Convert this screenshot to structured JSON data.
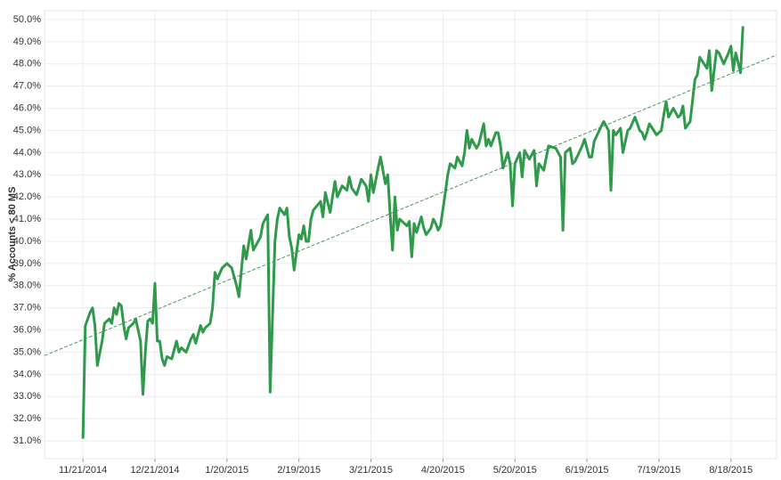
{
  "chart_data": {
    "type": "line",
    "y_label": "% Accounts < 80 MS",
    "xlim": [
      "2014-11-05",
      "2015-09-06"
    ],
    "xticks": [
      {
        "value": "2014-11-21",
        "label": "11/21/2014"
      },
      {
        "value": "2014-12-21",
        "label": "12/21/2014"
      },
      {
        "value": "2015-01-20",
        "label": "1/20/2015"
      },
      {
        "value": "2015-02-19",
        "label": "2/19/2015"
      },
      {
        "value": "2015-03-21",
        "label": "3/21/2015"
      },
      {
        "value": "2015-04-20",
        "label": "4/20/2015"
      },
      {
        "value": "2015-05-20",
        "label": "5/20/2015"
      },
      {
        "value": "2015-06-19",
        "label": "6/19/2015"
      },
      {
        "value": "2015-07-19",
        "label": "7/19/2015"
      },
      {
        "value": "2015-08-18",
        "label": "8/18/2015"
      }
    ],
    "ylim": [
      30.2,
      50.4
    ],
    "yticks": [
      {
        "value": 31,
        "label": "31.0%"
      },
      {
        "value": 32,
        "label": "32.0%"
      },
      {
        "value": 33,
        "label": "33.0%"
      },
      {
        "value": 34,
        "label": "34.0%"
      },
      {
        "value": 35,
        "label": "35.0%"
      },
      {
        "value": 36,
        "label": "36.0%"
      },
      {
        "value": 37,
        "label": "37.0%"
      },
      {
        "value": 38,
        "label": "38.0%"
      },
      {
        "value": 39,
        "label": "39.0%"
      },
      {
        "value": 40,
        "label": "40.0%"
      },
      {
        "value": 41,
        "label": "41.0%"
      },
      {
        "value": 42,
        "label": "42.0%"
      },
      {
        "value": 43,
        "label": "43.0%"
      },
      {
        "value": 44,
        "label": "44.0%"
      },
      {
        "value": 45,
        "label": "45.0%"
      },
      {
        "value": 46,
        "label": "46.0%"
      },
      {
        "value": 47,
        "label": "47.0%"
      },
      {
        "value": 48,
        "label": "48.0%"
      },
      {
        "value": 49,
        "label": "49.0%"
      },
      {
        "value": 50,
        "label": "50.0%"
      }
    ],
    "grid": true,
    "x": [
      "2014-11-21",
      "2014-11-22",
      "2014-11-24",
      "2014-11-25",
      "2014-11-26",
      "2014-11-27",
      "2014-11-29",
      "2014-11-30",
      "2014-12-02",
      "2014-12-03",
      "2014-12-04",
      "2014-12-05",
      "2014-12-06",
      "2014-12-07",
      "2014-12-08",
      "2014-12-09",
      "2014-12-10",
      "2014-12-12",
      "2014-12-13",
      "2014-12-14",
      "2014-12-15",
      "2014-12-16",
      "2014-12-17",
      "2014-12-18",
      "2014-12-19",
      "2014-12-20",
      "2014-12-21",
      "2014-12-22",
      "2014-12-23",
      "2014-12-24",
      "2014-12-25",
      "2014-12-26",
      "2014-12-28",
      "2014-12-30",
      "2014-12-31",
      "2015-01-01",
      "2015-01-03",
      "2015-01-05",
      "2015-01-06",
      "2015-01-07",
      "2015-01-09",
      "2015-01-10",
      "2015-01-11",
      "2015-01-13",
      "2015-01-14",
      "2015-01-15",
      "2015-01-16",
      "2015-01-18",
      "2015-01-20",
      "2015-01-22",
      "2015-01-24",
      "2015-01-25",
      "2015-01-27",
      "2015-01-28",
      "2015-01-30",
      "2015-01-31",
      "2015-02-03",
      "2015-02-04",
      "2015-02-06",
      "2015-02-07",
      "2015-02-09",
      "2015-02-10",
      "2015-02-11",
      "2015-02-13",
      "2015-02-14",
      "2015-02-15",
      "2015-02-16",
      "2015-02-17",
      "2015-02-18",
      "2015-02-19",
      "2015-02-20",
      "2015-02-21",
      "2015-02-22",
      "2015-02-23",
      "2015-02-24",
      "2015-02-25",
      "2015-02-28",
      "2015-03-01",
      "2015-03-02",
      "2015-03-04",
      "2015-03-06",
      "2015-03-07",
      "2015-03-09",
      "2015-03-11",
      "2015-03-12",
      "2015-03-13",
      "2015-03-15",
      "2015-03-17",
      "2015-03-19",
      "2015-03-20",
      "2015-03-21",
      "2015-03-22",
      "2015-03-24",
      "2015-03-25",
      "2015-03-27",
      "2015-03-28",
      "2015-03-29",
      "2015-03-30",
      "2015-03-31",
      "2015-04-01",
      "2015-04-02",
      "2015-04-05",
      "2015-04-06",
      "2015-04-07",
      "2015-04-08",
      "2015-04-09",
      "2015-04-11",
      "2015-04-12",
      "2015-04-13",
      "2015-04-15",
      "2015-04-16",
      "2015-04-17",
      "2015-04-18",
      "2015-04-19",
      "2015-04-21",
      "2015-04-22",
      "2015-04-23",
      "2015-04-25",
      "2015-04-26",
      "2015-04-28",
      "2015-04-29",
      "2015-04-30",
      "2015-05-01",
      "2015-05-02",
      "2015-05-04",
      "2015-05-05",
      "2015-05-07",
      "2015-05-08",
      "2015-05-09",
      "2015-05-10",
      "2015-05-12",
      "2015-05-13",
      "2015-05-14",
      "2015-05-15",
      "2015-05-17",
      "2015-05-18",
      "2015-05-19",
      "2015-05-20",
      "2015-05-22",
      "2015-05-23",
      "2015-05-24",
      "2015-05-26",
      "2015-05-28",
      "2015-05-29",
      "2015-05-30",
      "2015-06-01",
      "2015-06-03",
      "2015-06-06",
      "2015-06-07",
      "2015-06-08",
      "2015-06-09",
      "2015-06-10",
      "2015-06-12",
      "2015-06-13",
      "2015-06-14",
      "2015-06-17",
      "2015-06-18",
      "2015-06-20",
      "2015-06-21",
      "2015-06-22",
      "2015-06-25",
      "2015-06-26",
      "2015-06-28",
      "2015-06-29",
      "2015-06-30",
      "2015-07-01",
      "2015-07-03",
      "2015-07-04",
      "2015-07-06",
      "2015-07-07",
      "2015-07-09",
      "2015-07-11",
      "2015-07-12",
      "2015-07-13",
      "2015-07-14",
      "2015-07-15",
      "2015-07-18",
      "2015-07-20",
      "2015-07-21",
      "2015-07-22",
      "2015-07-23",
      "2015-07-25",
      "2015-07-27",
      "2015-07-28",
      "2015-07-29",
      "2015-07-30",
      "2015-08-01",
      "2015-08-03",
      "2015-08-04",
      "2015-08-05",
      "2015-08-08",
      "2015-08-09",
      "2015-08-10",
      "2015-08-12",
      "2015-08-13",
      "2015-08-15",
      "2015-08-17",
      "2015-08-18",
      "2015-08-19",
      "2015-08-20",
      "2015-08-22",
      "2015-08-23"
    ],
    "series": [
      {
        "color": "#2e9a4a",
        "values": [
          31.1,
          36.2,
          36.8,
          37.0,
          36.2,
          34.4,
          35.5,
          36.3,
          36.5,
          36.3,
          37.0,
          36.7,
          37.2,
          37.1,
          36.2,
          35.6,
          36.1,
          36.3,
          36.5,
          36.0,
          35.5,
          33.1,
          35.0,
          36.4,
          36.5,
          36.3,
          38.1,
          35.5,
          35.5,
          34.7,
          34.4,
          34.8,
          34.7,
          35.5,
          35.0,
          35.2,
          35.0,
          35.6,
          35.8,
          35.4,
          36.2,
          35.9,
          36.1,
          36.3,
          37.0,
          38.6,
          38.3,
          38.8,
          39.0,
          38.8,
          38.0,
          37.5,
          39.8,
          39.2,
          40.5,
          39.6,
          40.2,
          40.8,
          41.2,
          33.2,
          40.0,
          41.0,
          41.5,
          41.2,
          41.5,
          40.2,
          39.7,
          38.7,
          39.5,
          40.3,
          40.1,
          40.7,
          40.0,
          40.0,
          41.0,
          41.4,
          41.8,
          41.1,
          42.2,
          41.3,
          42.7,
          42.0,
          42.5,
          42.3,
          42.9,
          42.4,
          42.1,
          42.8,
          42.5,
          41.8,
          43.0,
          42.2,
          43.3,
          43.8,
          42.6,
          43.0,
          41.2,
          39.6,
          42.0,
          40.5,
          41.0,
          40.7,
          40.9,
          39.3,
          40.8,
          40.4,
          41.1,
          40.6,
          40.3,
          40.6,
          41.0,
          40.8,
          40.5,
          40.7,
          42.2,
          43.0,
          43.5,
          43.3,
          43.8,
          43.4,
          44.0,
          45.0,
          44.2,
          44.6,
          44.2,
          44.4,
          45.3,
          44.3,
          44.6,
          44.3,
          44.9,
          44.9,
          44.3,
          43.3,
          44.0,
          43.5,
          41.6,
          43.5,
          44.0,
          42.9,
          44.1,
          43.7,
          44.1,
          42.5,
          43.5,
          43.2,
          44.3,
          44.2,
          44.0,
          43.8,
          40.5,
          44.0,
          44.2,
          43.5,
          43.6,
          44.3,
          44.6,
          43.8,
          43.8,
          44.5,
          45.2,
          45.4,
          45.0,
          42.3,
          45.0,
          44.8,
          45.1,
          44.0,
          45.0,
          45.1,
          45.6,
          45.0,
          44.9,
          44.6,
          44.9,
          45.3,
          44.8,
          45.0,
          45.7,
          46.3,
          45.6,
          46.0,
          45.6,
          45.7,
          46.1,
          45.1,
          45.4,
          47.3,
          47.5,
          48.3,
          47.8,
          48.6,
          46.8,
          48.6,
          48.5,
          48.0,
          48.5,
          48.8,
          47.7,
          48.5,
          47.6,
          49.7
        ]
      }
    ],
    "trend": {
      "color": "#4a9a5e",
      "x": [
        "2014-11-05",
        "2015-09-06"
      ],
      "values": [
        34.85,
        48.4
      ]
    }
  }
}
